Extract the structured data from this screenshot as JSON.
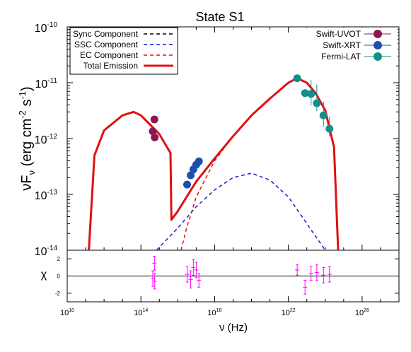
{
  "chart_data": [
    {
      "panel": "sed",
      "type": "scatter",
      "title": "State S1",
      "ylabel": "νF_ν (erg cm^-2 s^-1)",
      "xlabel": "",
      "xscale": "log",
      "yscale": "log",
      "xlim": [
        10000000000.0,
        1e+28
      ],
      "ylim": [
        1e-14,
        1e-10
      ],
      "x_ticks": [
        10000000000.0,
        100000000000000.0,
        1e+18,
        1e+22,
        1e+26
      ],
      "y_ticks": [
        1e-14,
        1e-13,
        1e-12,
        1e-11,
        1e-10
      ],
      "x_tick_labels": [
        "10^10",
        "10^14",
        "10^18",
        "10^22",
        "10^26"
      ],
      "y_tick_labels": [
        "10^-14",
        "10^-13",
        "10^-12",
        "10^-11",
        "10^-10"
      ],
      "legend_left": {
        "position": "top-left",
        "entries": [
          "Sync Component",
          "SSC Component",
          "EC Component",
          "Total Emission"
        ]
      },
      "legend_right": {
        "position": "top-right",
        "entries": [
          "Swift-UVOT",
          "Swift-XRT",
          "Fermi-LAT"
        ]
      },
      "lines": [
        {
          "name": "Sync Component",
          "style": "dashed",
          "color": "#000000",
          "x": [],
          "y": []
        },
        {
          "name": "SSC Component",
          "style": "dashed",
          "color": "#1a1ad6",
          "x": [
            700000000000000.0,
            1e+16,
            1e+17,
            1e+18,
            1e+19,
            1e+20,
            1e+21,
            1e+22,
            1e+23,
            1e+24
          ],
          "y": [
            1e-14,
            2.5e-14,
            6e-14,
            1.2e-13,
            2e-13,
            2.4e-13,
            1.8e-13,
            9e-14,
            3e-14,
            1e-14
          ]
        },
        {
          "name": "EC Component",
          "style": "dashed",
          "color": "#e01010",
          "x": [
            1.5e+16,
            3e+16,
            1e+17,
            1e+18,
            1e+19,
            1e+20,
            1e+21,
            1e+22,
            3e+22,
            1e+23,
            3e+23,
            1e+24,
            3e+24,
            5e+24
          ],
          "y": [
            1e-14,
            2.5e-14,
            9e-14,
            4e-13,
            1.1e-12,
            2.6e-12,
            5.2e-12,
            1e-11,
            1.2e-11,
            1e-11,
            6.5e-12,
            3.2e-12,
            7e-13,
            1e-14
          ]
        },
        {
          "name": "Total Emission",
          "style": "solid",
          "color": "#e01010",
          "x": [
            150000000000.0,
            300000000000.0,
            1000000000000.0,
            10000000000000.0,
            40000000000000.0,
            100000000000000.0,
            1000000000000000.0,
            4000000000000000.0,
            4500000000000000.0,
            1e+16,
            1e+17,
            1e+18,
            1e+19,
            1e+20,
            1e+21,
            1e+22,
            3e+22,
            1e+23,
            3e+23,
            1e+24,
            3e+24,
            5e+24
          ],
          "y": [
            1e-14,
            5e-13,
            1.4e-12,
            2.6e-12,
            3e-12,
            2.6e-12,
            1.2e-12,
            5.5e-13,
            3.5e-14,
            5e-14,
            1.7e-13,
            4.4e-13,
            1.1e-12,
            2.6e-12,
            5.2e-12,
            1e-11,
            1.2e-11,
            1e-11,
            6.5e-12,
            3.2e-12,
            7e-13,
            1e-14
          ]
        }
      ],
      "series": [
        {
          "name": "Swift-UVOT",
          "color": "#8b1850",
          "x": [
            440000000000000.0,
            540000000000000.0,
            560000000000000.0
          ],
          "y": [
            1.35e-12,
            2.2e-12,
            1.05e-12
          ],
          "yerr": [
            null,
            null,
            null
          ]
        },
        {
          "name": "Swift-XRT",
          "color": "#1c4fb0",
          "x": [
            3.2e+16,
            5e+16,
            7e+16,
            1e+17,
            1.4e+17
          ],
          "y": [
            1.5e-13,
            2.2e-13,
            2.8e-13,
            3.4e-13,
            3.9e-13
          ],
          "yerr": [
            null,
            null,
            null,
            null,
            null
          ]
        },
        {
          "name": "Fermi-LAT",
          "color": "#12908a",
          "x": [
            3e+22,
            8e+22,
            1.7e+23,
            3.5e+23,
            8e+23,
            1.7e+24
          ],
          "y": [
            1.2e-11,
            6.5e-12,
            6.3e-12,
            4.3e-12,
            2.6e-12,
            1.5e-12
          ],
          "yerr": [
            null,
            null,
            [
              2.4e-12,
              5e-12
            ],
            [
              1.2e-12,
              5e-12
            ],
            [
              1e-12,
              2e-12
            ],
            [
              4e-13,
              1e-12
            ]
          ]
        }
      ]
    },
    {
      "panel": "residuals",
      "type": "scatter",
      "xlabel": "ν (Hz)",
      "ylabel": "χ",
      "xscale": "log",
      "xlim": [
        10000000000.0,
        1e+28
      ],
      "ylim": [
        -3,
        3
      ],
      "y_ticks": [
        -2,
        0,
        2
      ],
      "y_tick_labels": [
        "-2",
        "0",
        "2"
      ],
      "zero_line": 0,
      "color": "#ff00ff",
      "x": [
        440000000000000.0,
        540000000000000.0,
        560000000000000.0,
        3.2e+16,
        5e+16,
        7e+16,
        1e+17,
        1.4e+17,
        3e+22,
        8e+22,
        1.7e+23,
        3.5e+23,
        8e+23,
        1.7e+24
      ],
      "y": [
        -0.3,
        1.5,
        -0.6,
        0.2,
        -0.4,
        1.0,
        0.7,
        -0.5,
        0.7,
        -1.3,
        0.3,
        0.4,
        0.1,
        0.2
      ],
      "yerr": [
        0.9,
        0.8,
        0.9,
        0.9,
        1.0,
        0.9,
        0.9,
        0.8,
        0.6,
        0.8,
        0.8,
        0.9,
        0.9,
        0.9
      ]
    }
  ]
}
